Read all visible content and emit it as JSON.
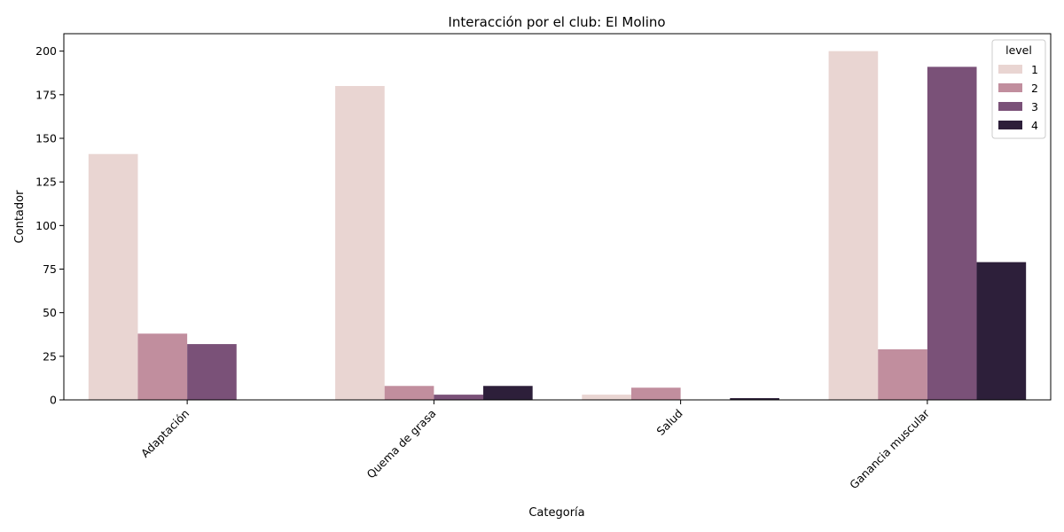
{
  "chart_data": {
    "type": "bar",
    "title": "Interacción por el club: El Molino",
    "xlabel": "Categoría",
    "ylabel": "Contador",
    "categories": [
      "Adaptación",
      "Quema de grasa",
      "Salud",
      "Ganancia muscular"
    ],
    "ylim": [
      0,
      210
    ],
    "yticks": [
      0,
      25,
      50,
      75,
      100,
      125,
      150,
      175,
      200
    ],
    "legend": {
      "title": "level",
      "placement": "top-right"
    },
    "grid": false,
    "series": [
      {
        "name": "1",
        "color": "#e9d5d2",
        "values": [
          141,
          180,
          3,
          200
        ]
      },
      {
        "name": "2",
        "color": "#c18e9e",
        "values": [
          38,
          8,
          7,
          29
        ]
      },
      {
        "name": "3",
        "color": "#7a5178",
        "values": [
          32,
          3,
          0,
          191
        ]
      },
      {
        "name": "4",
        "color": "#2d1f3a",
        "values": [
          0,
          8,
          1,
          79
        ]
      }
    ]
  }
}
